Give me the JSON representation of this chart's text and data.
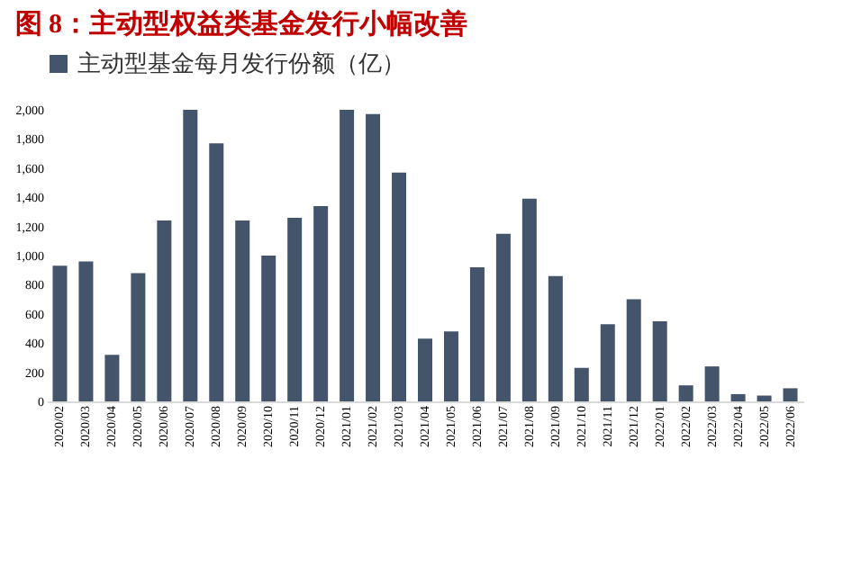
{
  "chart_data": {
    "type": "bar",
    "title": "图 8：主动型权益类基金发行小幅改善",
    "categories": [
      "2020/02",
      "2020/03",
      "2020/04",
      "2020/05",
      "2020/06",
      "2020/07",
      "2020/08",
      "2020/09",
      "2020/10",
      "2020/11",
      "2020/12",
      "2021/01",
      "2021/02",
      "2021/03",
      "2021/04",
      "2021/05",
      "2021/06",
      "2021/07",
      "2021/08",
      "2021/09",
      "2021/10",
      "2021/11",
      "2021/12",
      "2022/01",
      "2022/02",
      "2022/03",
      "2022/04",
      "2022/05",
      "2022/06"
    ],
    "series": [
      {
        "name": "主动型基金每月发行份额（亿）",
        "color": "#44546a",
        "values": [
          930,
          960,
          320,
          880,
          1240,
          2000,
          1770,
          1240,
          1000,
          1260,
          1340,
          2000,
          1970,
          1570,
          430,
          480,
          920,
          1150,
          1390,
          860,
          230,
          530,
          700,
          550,
          110,
          240,
          50,
          40,
          90
        ]
      }
    ],
    "ylim": [
      0,
      2000
    ],
    "yticks": [
      0,
      200,
      400,
      600,
      800,
      {
        "value": 1000,
        "label": "1,000"
      },
      {
        "value": 1200,
        "label": "1,200"
      },
      {
        "value": 1400,
        "label": "1,400"
      },
      {
        "value": 1600,
        "label": "1,600"
      },
      {
        "value": 1800,
        "label": "1,800"
      },
      {
        "value": 2000,
        "label": "2,000"
      }
    ],
    "grid": false,
    "legend": "top"
  }
}
